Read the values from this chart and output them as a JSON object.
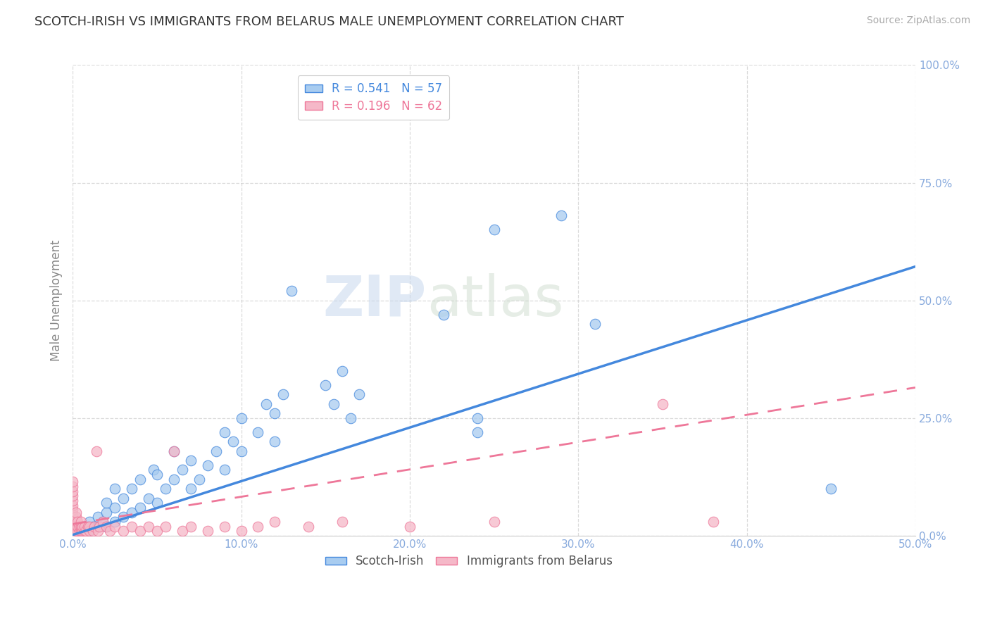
{
  "title": "SCOTCH-IRISH VS IMMIGRANTS FROM BELARUS MALE UNEMPLOYMENT CORRELATION CHART",
  "source_text": "Source: ZipAtlas.com",
  "watermark_part1": "ZIP",
  "watermark_part2": "atlas",
  "xlabel": "",
  "ylabel": "Male Unemployment",
  "legend1_label": "Scotch-Irish",
  "legend2_label": "Immigrants from Belarus",
  "r1": 0.541,
  "n1": 57,
  "r2": 0.196,
  "n2": 62,
  "xlim": [
    0.0,
    0.5
  ],
  "ylim": [
    0.0,
    1.0
  ],
  "xticks": [
    0.0,
    0.1,
    0.2,
    0.3,
    0.4,
    0.5
  ],
  "yticks": [
    0.0,
    0.25,
    0.5,
    0.75,
    1.0
  ],
  "xtick_labels": [
    "0.0%",
    "10.0%",
    "20.0%",
    "30.0%",
    "40.0%",
    "50.0%"
  ],
  "ytick_labels": [
    "0.0%",
    "25.0%",
    "50.0%",
    "75.0%",
    "100.0%"
  ],
  "color_blue": "#A8CCF0",
  "color_pink": "#F5B8C8",
  "line_blue": "#4488DD",
  "line_pink": "#EE7799",
  "background_color": "#FFFFFF",
  "grid_color": "#CCCCCC",
  "title_color": "#333333",
  "axis_label_color": "#888888",
  "tick_color": "#88AADD",
  "scatter_blue": [
    [
      0.005,
      0.01
    ],
    [
      0.005,
      0.02
    ],
    [
      0.008,
      0.015
    ],
    [
      0.01,
      0.01
    ],
    [
      0.01,
      0.03
    ],
    [
      0.012,
      0.02
    ],
    [
      0.015,
      0.02
    ],
    [
      0.015,
      0.04
    ],
    [
      0.018,
      0.03
    ],
    [
      0.02,
      0.02
    ],
    [
      0.02,
      0.05
    ],
    [
      0.02,
      0.07
    ],
    [
      0.025,
      0.03
    ],
    [
      0.025,
      0.06
    ],
    [
      0.025,
      0.1
    ],
    [
      0.03,
      0.04
    ],
    [
      0.03,
      0.08
    ],
    [
      0.035,
      0.05
    ],
    [
      0.035,
      0.1
    ],
    [
      0.04,
      0.06
    ],
    [
      0.04,
      0.12
    ],
    [
      0.045,
      0.08
    ],
    [
      0.048,
      0.14
    ],
    [
      0.05,
      0.07
    ],
    [
      0.05,
      0.13
    ],
    [
      0.055,
      0.1
    ],
    [
      0.06,
      0.12
    ],
    [
      0.06,
      0.18
    ],
    [
      0.065,
      0.14
    ],
    [
      0.07,
      0.1
    ],
    [
      0.07,
      0.16
    ],
    [
      0.075,
      0.12
    ],
    [
      0.08,
      0.15
    ],
    [
      0.085,
      0.18
    ],
    [
      0.09,
      0.14
    ],
    [
      0.09,
      0.22
    ],
    [
      0.095,
      0.2
    ],
    [
      0.1,
      0.18
    ],
    [
      0.1,
      0.25
    ],
    [
      0.11,
      0.22
    ],
    [
      0.115,
      0.28
    ],
    [
      0.12,
      0.2
    ],
    [
      0.12,
      0.26
    ],
    [
      0.125,
      0.3
    ],
    [
      0.13,
      0.52
    ],
    [
      0.15,
      0.32
    ],
    [
      0.155,
      0.28
    ],
    [
      0.16,
      0.35
    ],
    [
      0.165,
      0.25
    ],
    [
      0.17,
      0.3
    ],
    [
      0.22,
      0.47
    ],
    [
      0.24,
      0.22
    ],
    [
      0.24,
      0.25
    ],
    [
      0.25,
      0.65
    ],
    [
      0.29,
      0.68
    ],
    [
      0.31,
      0.45
    ],
    [
      0.45,
      0.1
    ]
  ],
  "scatter_pink": [
    [
      0.0,
      0.005
    ],
    [
      0.0,
      0.015
    ],
    [
      0.0,
      0.025
    ],
    [
      0.0,
      0.035
    ],
    [
      0.0,
      0.045
    ],
    [
      0.0,
      0.055
    ],
    [
      0.0,
      0.065
    ],
    [
      0.0,
      0.075
    ],
    [
      0.0,
      0.085
    ],
    [
      0.0,
      0.095
    ],
    [
      0.0,
      0.105
    ],
    [
      0.0,
      0.115
    ],
    [
      0.002,
      0.01
    ],
    [
      0.002,
      0.02
    ],
    [
      0.002,
      0.03
    ],
    [
      0.002,
      0.04
    ],
    [
      0.002,
      0.05
    ],
    [
      0.003,
      0.01
    ],
    [
      0.003,
      0.02
    ],
    [
      0.003,
      0.03
    ],
    [
      0.004,
      0.01
    ],
    [
      0.004,
      0.02
    ],
    [
      0.005,
      0.01
    ],
    [
      0.005,
      0.02
    ],
    [
      0.005,
      0.03
    ],
    [
      0.006,
      0.01
    ],
    [
      0.006,
      0.02
    ],
    [
      0.007,
      0.01
    ],
    [
      0.007,
      0.02
    ],
    [
      0.008,
      0.01
    ],
    [
      0.009,
      0.02
    ],
    [
      0.01,
      0.01
    ],
    [
      0.01,
      0.02
    ],
    [
      0.012,
      0.01
    ],
    [
      0.013,
      0.02
    ],
    [
      0.014,
      0.18
    ],
    [
      0.015,
      0.01
    ],
    [
      0.016,
      0.02
    ],
    [
      0.018,
      0.03
    ],
    [
      0.02,
      0.02
    ],
    [
      0.022,
      0.01
    ],
    [
      0.025,
      0.02
    ],
    [
      0.03,
      0.01
    ],
    [
      0.035,
      0.02
    ],
    [
      0.04,
      0.01
    ],
    [
      0.045,
      0.02
    ],
    [
      0.05,
      0.01
    ],
    [
      0.055,
      0.02
    ],
    [
      0.06,
      0.18
    ],
    [
      0.065,
      0.01
    ],
    [
      0.07,
      0.02
    ],
    [
      0.08,
      0.01
    ],
    [
      0.09,
      0.02
    ],
    [
      0.1,
      0.01
    ],
    [
      0.11,
      0.02
    ],
    [
      0.12,
      0.03
    ],
    [
      0.14,
      0.02
    ],
    [
      0.16,
      0.03
    ],
    [
      0.2,
      0.02
    ],
    [
      0.25,
      0.03
    ],
    [
      0.35,
      0.28
    ],
    [
      0.38,
      0.03
    ]
  ],
  "reg_blue": [
    0.0,
    0.002,
    1.14
  ],
  "reg_pink": [
    0.0,
    0.025,
    0.58
  ],
  "figsize": [
    14.06,
    8.92
  ],
  "dpi": 100
}
